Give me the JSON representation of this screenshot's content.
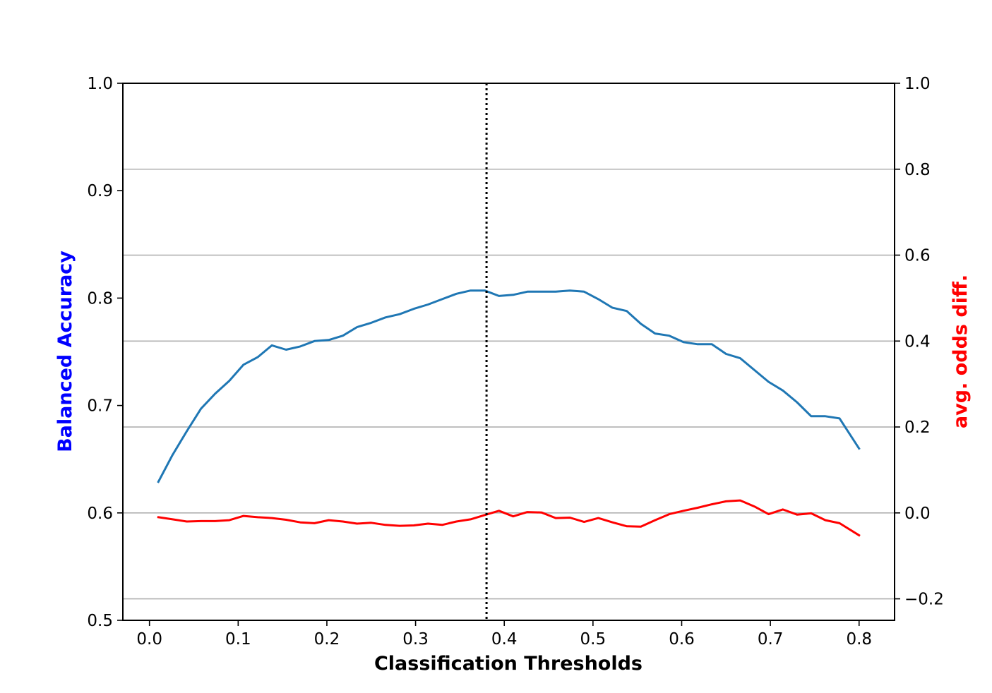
{
  "chart_data": {
    "type": "line",
    "xlabel": "Classification Thresholds",
    "ylabel_left": "Balanced Accuracy",
    "ylabel_right": "avg. odds diff.",
    "xlim": [
      -0.03,
      0.84
    ],
    "ylim_left": [
      0.5,
      1.0
    ],
    "ylim_right": [
      -0.25,
      1.0
    ],
    "x_ticks": [
      "0.0",
      "0.1",
      "0.2",
      "0.3",
      "0.4",
      "0.5",
      "0.6",
      "0.7",
      "0.8"
    ],
    "y_left_ticks": [
      "0.5",
      "0.6",
      "0.7",
      "0.8",
      "0.9",
      "1.0"
    ],
    "y_right_ticks": [
      "−0.2",
      "0.0",
      "0.2",
      "0.4",
      "0.6",
      "0.8",
      "1.0"
    ],
    "grid": "horizontal lines at right-axis ticks",
    "vline": {
      "x": 0.38,
      "style": "dotted",
      "color": "#000000"
    },
    "colors": {
      "left_axis_label": "#0000ff",
      "right_axis_label": "#ff0000"
    },
    "series": [
      {
        "axis": "left",
        "color": "#1f77b4",
        "x": [
          0.01,
          0.026,
          0.042,
          0.058,
          0.074,
          0.09,
          0.106,
          0.122,
          0.138,
          0.154,
          0.17,
          0.186,
          0.202,
          0.218,
          0.234,
          0.25,
          0.266,
          0.282,
          0.298,
          0.314,
          0.33,
          0.346,
          0.362,
          0.378,
          0.394,
          0.41,
          0.426,
          0.442,
          0.458,
          0.474,
          0.49,
          0.506,
          0.522,
          0.538,
          0.554,
          0.57,
          0.586,
          0.602,
          0.618,
          0.634,
          0.65,
          0.666,
          0.682,
          0.698,
          0.714,
          0.73,
          0.746,
          0.762,
          0.778,
          0.8
        ],
        "y": [
          0.629,
          0.654,
          0.676,
          0.697,
          0.711,
          0.723,
          0.738,
          0.745,
          0.756,
          0.752,
          0.755,
          0.76,
          0.761,
          0.765,
          0.773,
          0.777,
          0.782,
          0.785,
          0.79,
          0.794,
          0.799,
          0.804,
          0.807,
          0.807,
          0.802,
          0.803,
          0.806,
          0.806,
          0.806,
          0.807,
          0.806,
          0.799,
          0.791,
          0.788,
          0.776,
          0.767,
          0.765,
          0.759,
          0.757,
          0.757,
          0.748,
          0.744,
          0.733,
          0.722,
          0.714,
          0.703,
          0.69,
          0.69,
          0.688,
          0.66
        ]
      },
      {
        "axis": "right",
        "color": "#ff0000",
        "x": [
          0.01,
          0.026,
          0.042,
          0.058,
          0.074,
          0.09,
          0.106,
          0.122,
          0.138,
          0.154,
          0.17,
          0.186,
          0.202,
          0.218,
          0.234,
          0.25,
          0.266,
          0.282,
          0.298,
          0.314,
          0.33,
          0.346,
          0.362,
          0.378,
          0.394,
          0.41,
          0.426,
          0.442,
          0.458,
          0.474,
          0.49,
          0.506,
          0.522,
          0.538,
          0.554,
          0.57,
          0.586,
          0.602,
          0.618,
          0.634,
          0.65,
          0.666,
          0.682,
          0.698,
          0.714,
          0.73,
          0.746,
          0.762,
          0.778,
          0.8
        ],
        "y": [
          -0.01,
          -0.015,
          -0.02,
          -0.019,
          -0.019,
          -0.017,
          -0.007,
          -0.01,
          -0.012,
          -0.016,
          -0.022,
          -0.024,
          -0.017,
          -0.02,
          -0.025,
          -0.023,
          -0.028,
          -0.03,
          -0.029,
          -0.025,
          -0.028,
          -0.02,
          -0.015,
          -0.005,
          0.005,
          -0.008,
          0.002,
          0.001,
          -0.012,
          -0.011,
          -0.021,
          -0.012,
          -0.022,
          -0.031,
          -0.032,
          -0.017,
          -0.003,
          0.005,
          0.012,
          0.02,
          0.027,
          0.029,
          0.015,
          -0.003,
          0.008,
          -0.004,
          -0.001,
          -0.017,
          -0.024,
          -0.052
        ]
      }
    ]
  }
}
